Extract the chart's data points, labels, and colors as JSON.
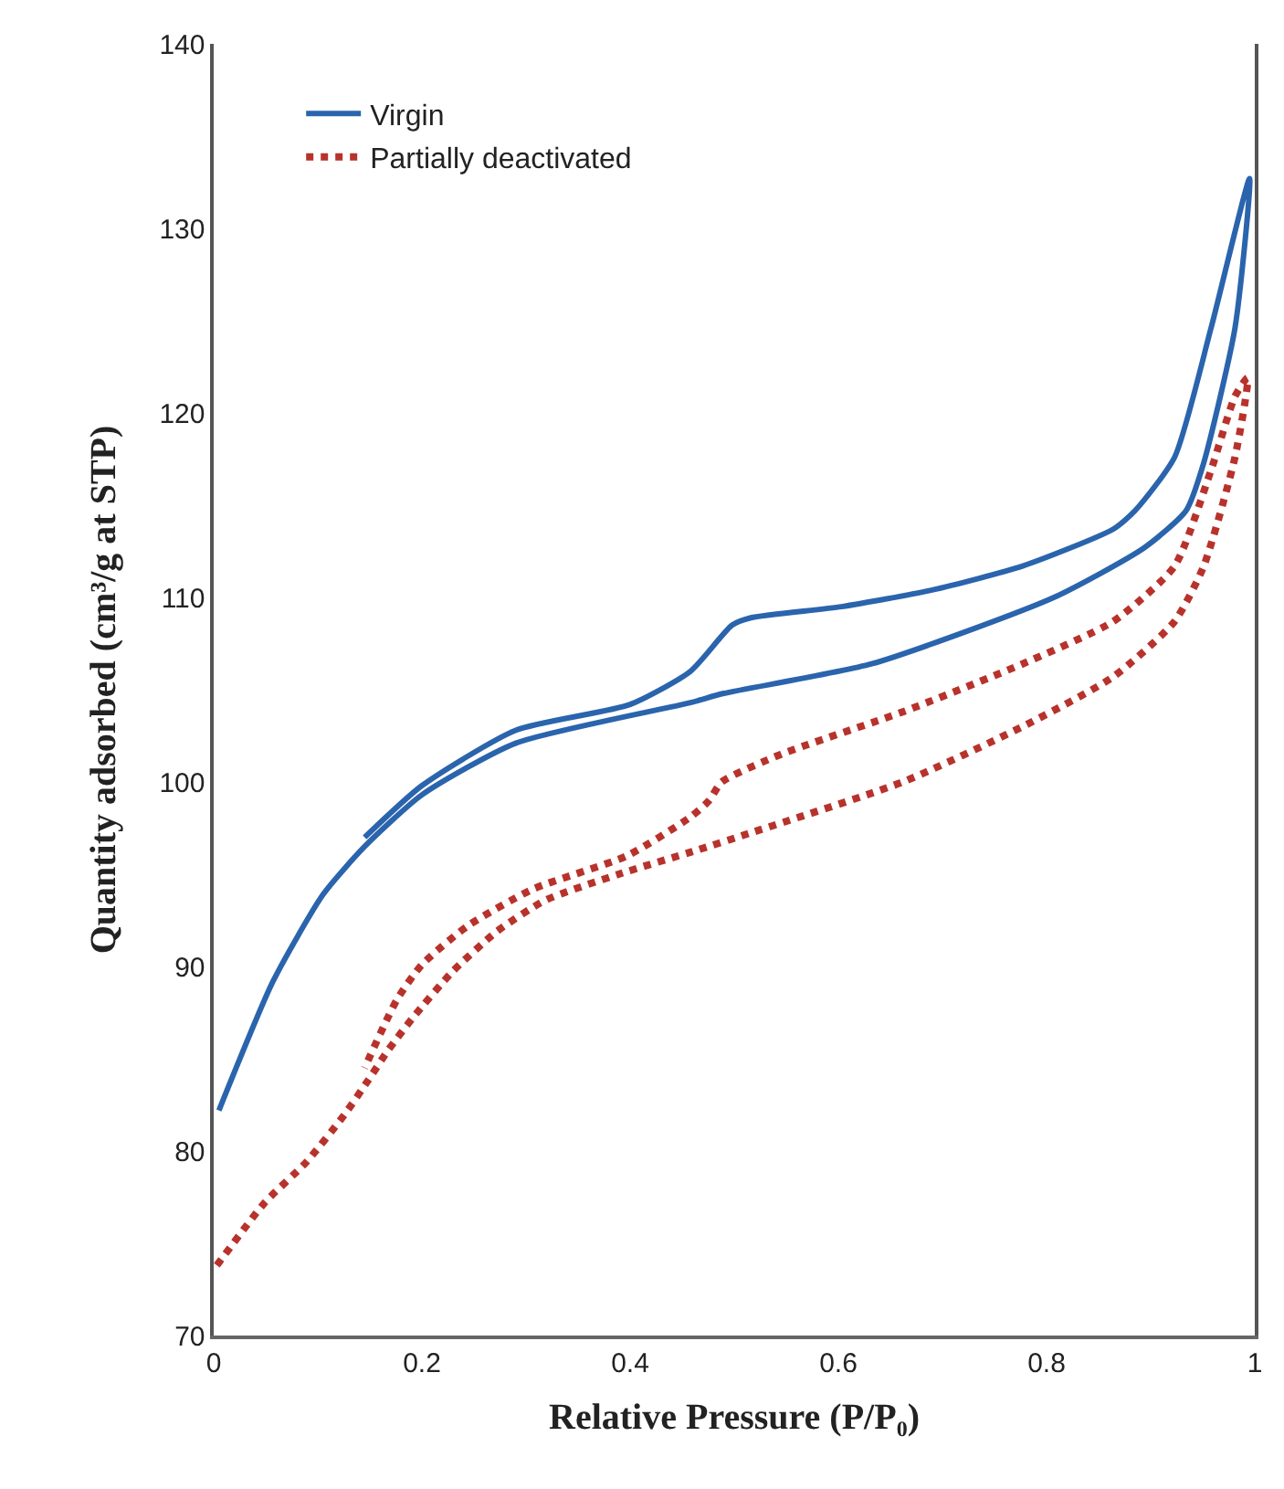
{
  "chart_data": {
    "type": "line",
    "xlabel": "Relative Pressure (P/P₀)",
    "ylabel": "Quantity adsorbed (cm³/g at STP)",
    "xlim": [
      0,
      1
    ],
    "xticks": [
      0,
      0.2,
      0.4,
      0.6,
      0.8,
      1
    ],
    "ylim": [
      70,
      140
    ],
    "yticks": [
      70,
      80,
      90,
      100,
      110,
      120,
      130,
      140
    ],
    "grid": false,
    "legend": "top left",
    "marker": "none",
    "series": [
      {
        "name": "Virgin",
        "color": "#2a64ad",
        "line_style": "solid",
        "x": [
          0.005,
          0.057,
          0.105,
          0.145,
          0.2,
          0.29,
          0.458,
          0.49,
          0.632,
          0.807,
          0.894,
          0.934,
          0.951,
          0.981,
          0.995,
          0.958,
          0.923,
          0.885,
          0.864,
          0.777,
          0.69,
          0.603,
          0.516,
          0.498,
          0.458,
          0.4,
          0.29,
          0.2,
          0.145
        ],
        "values": [
          82.2,
          89.2,
          93.9,
          96.5,
          99.3,
          102.1,
          104.3,
          104.8,
          106.4,
          110,
          112.7,
          114.7,
          117.3,
          124.6,
          132.7,
          124.6,
          117.6,
          114.7,
          113.7,
          111.7,
          110.4,
          109.5,
          108.9,
          108.5,
          106,
          104.2,
          102.8,
          99.8,
          97
        ]
      },
      {
        "name": "Partially deactivated",
        "color": "#b8322c",
        "line_style": "dotted",
        "x": [
          0.003,
          0.049,
          0.089,
          0.126,
          0.148,
          0.168,
          0.191,
          0.229,
          0.272,
          0.319,
          0.389,
          0.464,
          0.519,
          0.662,
          0.777,
          0.864,
          0.923,
          0.951,
          0.981,
          0.993,
          0.981,
          0.958,
          0.923,
          0.864,
          0.777,
          0.662,
          0.545,
          0.488,
          0.476,
          0.458,
          0.397,
          0.307,
          0.244,
          0.2,
          0.176,
          0.145
        ],
        "values": [
          73.8,
          77.2,
          79.4,
          82,
          83.8,
          85.5,
          87.2,
          89.7,
          91.9,
          93.6,
          95,
          96.3,
          97.3,
          100,
          103,
          105.7,
          108.7,
          111.7,
          117.6,
          121.9,
          120.9,
          116.9,
          111.7,
          108.7,
          106.4,
          103.8,
          101.5,
          100,
          99,
          98.1,
          96,
          94.2,
          92.2,
          90.1,
          88.2,
          84.5
        ]
      }
    ]
  }
}
